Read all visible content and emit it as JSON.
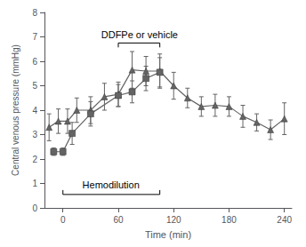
{
  "chart_data": {
    "type": "line",
    "xlabel": "Time (min)",
    "ylabel": "Central venous pressure (mmHg)",
    "xlim": [
      -20,
      248
    ],
    "xticks": [
      0,
      60,
      120,
      180,
      240
    ],
    "ylim": [
      0,
      8
    ],
    "yticks": [
      0,
      1,
      2,
      3,
      4,
      5,
      6,
      7,
      8
    ],
    "grid": false,
    "color": "#646464",
    "series": [
      {
        "marker": "triangle",
        "x": [
          -15,
          -5,
          5,
          15,
          30,
          45,
          60,
          75,
          90,
          105,
          120,
          135,
          150,
          165,
          180,
          195,
          210,
          225,
          240
        ],
        "values": [
          3.3,
          3.55,
          3.55,
          4.0,
          4.0,
          4.55,
          4.65,
          5.65,
          5.6,
          5.6,
          5.0,
          4.5,
          4.15,
          4.2,
          4.15,
          3.75,
          3.5,
          3.2,
          3.65
        ],
        "errors": [
          0.55,
          0.5,
          0.5,
          0.5,
          0.55,
          0.55,
          0.5,
          0.75,
          0.6,
          0.7,
          0.55,
          0.4,
          0.4,
          0.45,
          0.4,
          0.45,
          0.35,
          0.4,
          0.65
        ]
      },
      {
        "marker": "square",
        "x": [
          -10,
          0,
          10,
          30,
          60,
          75,
          90,
          105
        ],
        "values": [
          2.3,
          2.3,
          3.05,
          3.85,
          4.6,
          4.75,
          5.3,
          5.55
        ],
        "errors": [
          0.15,
          0.15,
          0.45,
          0.5,
          0.45,
          0.45,
          0.5,
          0.6
        ]
      }
    ],
    "annotations": [
      {
        "text": "Hemodilution",
        "x1": 0,
        "x2": 105,
        "y": 0.55,
        "label_x": 52
      },
      {
        "text": "DDFPe or vehicle",
        "x1": 60,
        "x2": 105,
        "y": 6.75,
        "label_x": 83
      }
    ]
  }
}
